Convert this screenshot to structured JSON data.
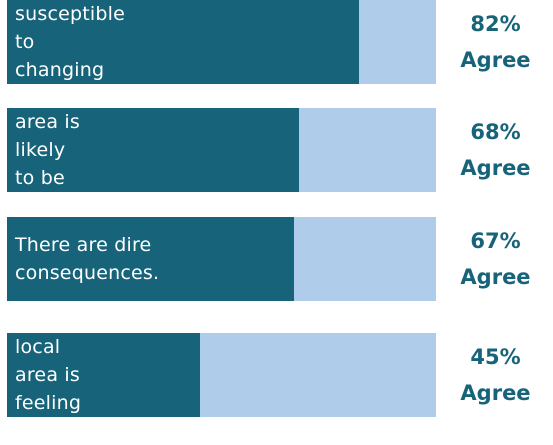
{
  "chart_data": {
    "type": "bar",
    "orientation": "horizontal",
    "categories": [
      "Wyoming is susceptible to\nchanging water resources.",
      "My local area is likely\nto be affected.",
      "There are dire\nconsequences.",
      "My local area is\nfeeling effects."
    ],
    "values": [
      82,
      68,
      67,
      45
    ],
    "value_labels": [
      "82%\nAgree",
      "68%\nAgree",
      "67%\nAgree",
      "45%\nAgree"
    ],
    "color": "#17647a",
    "track_color": "#afcdea",
    "xlim": [
      0,
      100
    ]
  }
}
